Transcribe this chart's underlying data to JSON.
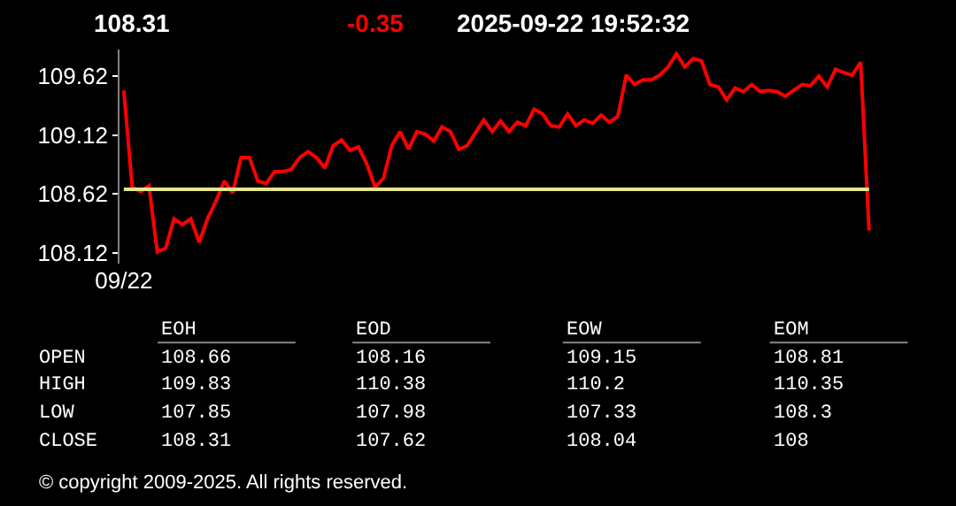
{
  "chart_data": [
    {
      "type": "line",
      "annotations": [
        "108.31",
        "-0.35",
        "2025-09-22 19:52:32"
      ],
      "categories": [
        "09/22",
        null,
        null,
        null,
        null,
        null,
        null,
        null,
        null,
        null,
        null,
        null,
        null,
        null,
        null,
        null,
        null,
        null,
        null,
        null,
        null,
        null,
        null,
        null,
        null,
        null,
        null,
        null,
        null,
        null,
        null,
        null,
        null,
        null,
        null,
        null,
        null,
        null,
        null,
        null,
        null,
        null,
        null,
        null,
        null,
        null,
        null,
        null,
        null,
        null,
        null,
        null,
        null,
        null,
        null,
        null,
        null,
        null,
        null,
        null,
        null,
        null,
        null,
        null,
        null,
        null,
        null,
        null,
        null,
        null,
        null,
        null,
        null,
        null,
        null,
        null,
        null,
        null,
        null,
        null,
        null,
        null,
        null,
        null,
        null,
        null,
        null,
        null,
        null,
        null
      ],
      "series": [
        {
          "color": "#ff0000",
          "values": [
            109.5,
            108.68,
            108.64,
            108.69,
            108.13,
            108.16,
            108.41,
            108.36,
            108.41,
            108.21,
            108.41,
            108.56,
            108.73,
            108.63,
            108.93,
            108.93,
            108.73,
            108.71,
            108.81,
            108.81,
            108.83,
            108.93,
            108.98,
            108.93,
            108.84,
            109.03,
            109.08,
            108.99,
            109.02,
            108.88,
            108.68,
            108.75,
            109.03,
            109.15,
            109.0,
            109.15,
            109.13,
            109.07,
            109.19,
            109.15,
            109.0,
            109.03,
            109.14,
            109.25,
            109.15,
            109.24,
            109.15,
            109.23,
            109.2,
            109.34,
            109.3,
            109.2,
            109.19,
            109.3,
            109.2,
            109.25,
            109.22,
            109.29,
            109.23,
            109.28,
            109.63,
            109.55,
            109.59,
            109.59,
            109.63,
            109.7,
            109.81,
            109.7,
            109.77,
            109.75,
            109.55,
            109.53,
            109.42,
            109.52,
            109.49,
            109.55,
            109.49,
            109.5,
            109.49,
            109.45,
            109.5,
            109.55,
            109.54,
            109.62,
            109.53,
            109.68,
            109.65,
            109.63,
            109.74,
            108.31
          ]
        }
      ],
      "ylim": [
        108.03,
        109.85
      ],
      "yticks": [
        108.12,
        108.62,
        109.12,
        109.62
      ],
      "ref_lines": [
        {
          "axis": "y",
          "value": 108.66,
          "color": "#e6e68c"
        }
      ],
      "grid": false
    },
    {
      "type": "other",
      "categories": [
        "EOH",
        "EOD",
        "EOW",
        "EOM"
      ],
      "y_categories": [
        "OPEN",
        "HIGH",
        "LOW",
        "CLOSE"
      ],
      "annotations": [
        "108.66",
        "108.16",
        "109.15",
        "108.81",
        "109.83",
        "110.38",
        "110.2",
        "110.35",
        "107.85",
        "107.98",
        "107.33",
        "108.3",
        "108.31",
        "107.62",
        "108.04",
        "108",
        "© copyright 2009-2025. All rights reserved."
      ]
    }
  ]
}
